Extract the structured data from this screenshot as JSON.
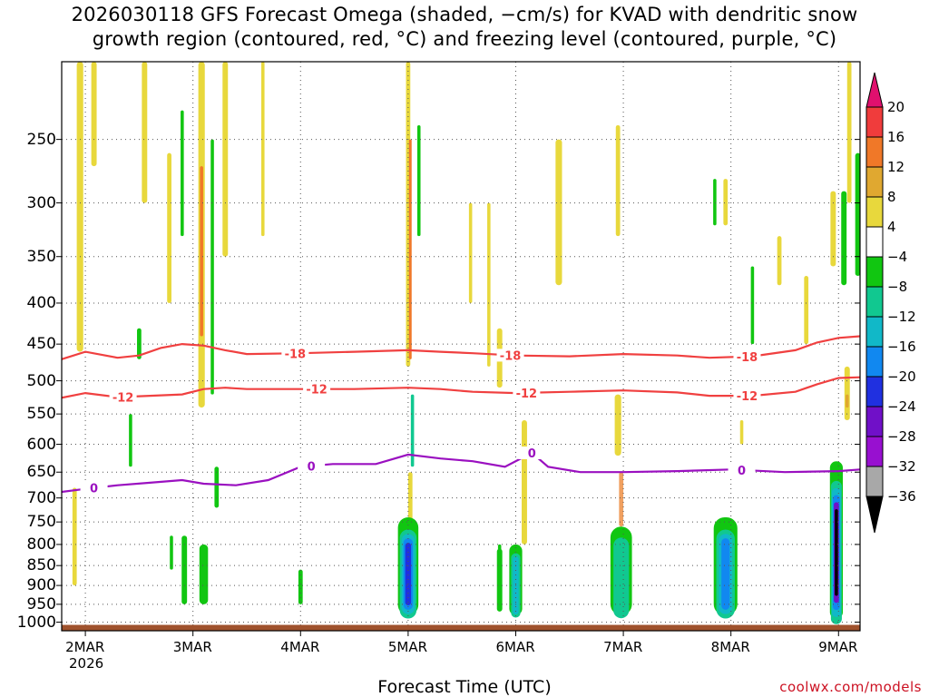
{
  "title_line1": "2026030118 GFS Forecast Omega (shaded, −cm/s) for KVAD with dendritic snow",
  "title_line2": "growth region (contoured, red, °C) and freezing level (contoured, purple, °C)",
  "credit": "coolwx.com/models",
  "chart_data": {
    "type": "heatmap",
    "title": "2026030118 GFS Forecast Omega (shaded, −cm/s) for KVAD with dendritic snow growth region (contoured, red, °C) and freezing level (contoured, purple, °C)",
    "xlabel": "Forecast Time (UTC)",
    "ylabel": "",
    "x_unit": "days since 2MAR2026 00Z",
    "xlim": [
      -0.22,
      7.2
    ],
    "y_scale": "log-pressure",
    "ylim": [
      1025,
      200
    ],
    "x_ticks": [
      {
        "label": "2MAR",
        "x": 0
      },
      {
        "label": "3MAR",
        "x": 1
      },
      {
        "label": "4MAR",
        "x": 2
      },
      {
        "label": "5MAR",
        "x": 3
      },
      {
        "label": "6MAR",
        "x": 4
      },
      {
        "label": "7MAR",
        "x": 5
      },
      {
        "label": "8MAR",
        "x": 6
      },
      {
        "label": "9MAR",
        "x": 7
      }
    ],
    "x_year_label": "2026",
    "y_ticks": [
      250,
      300,
      350,
      400,
      450,
      500,
      550,
      600,
      650,
      700,
      750,
      800,
      850,
      900,
      950,
      1000
    ],
    "colorbar": {
      "labels": [
        "20",
        "16",
        "12",
        "8",
        "4",
        "−4",
        "−8",
        "−12",
        "−16",
        "−20",
        "−24",
        "−28",
        "−32",
        "−36"
      ],
      "colors": [
        "#e0106e",
        "#f03c3c",
        "#f07828",
        "#e0a830",
        "#e8d83c",
        "#ffffff",
        "#11c611",
        "#11c890",
        "#11b8c8",
        "#1188f0",
        "#2030e0",
        "#7010c8",
        "#9810d0",
        "#a8a8a8",
        "#000000"
      ]
    },
    "contours": [
      {
        "name": "dendritic top",
        "label": "-18",
        "color": "#f04040",
        "points": [
          [
            -0.22,
            470
          ],
          [
            0,
            460
          ],
          [
            0.3,
            468
          ],
          [
            0.5,
            465
          ],
          [
            0.7,
            455
          ],
          [
            0.9,
            450
          ],
          [
            1.1,
            452
          ],
          [
            1.3,
            458
          ],
          [
            1.5,
            463
          ],
          [
            2,
            462
          ],
          [
            2.5,
            460
          ],
          [
            3,
            458
          ],
          [
            3.3,
            460
          ],
          [
            3.6,
            462
          ],
          [
            4,
            465
          ],
          [
            4.5,
            466
          ],
          [
            5,
            463
          ],
          [
            5.5,
            465
          ],
          [
            5.8,
            468
          ],
          [
            6.2,
            466
          ],
          [
            6.6,
            458
          ],
          [
            6.8,
            448
          ],
          [
            7,
            442
          ],
          [
            7.2,
            440
          ]
        ],
        "label_x": [
          1.95,
          3.95,
          6.15
        ]
      },
      {
        "name": "dendritic bottom",
        "label": "-12",
        "color": "#f04040",
        "points": [
          [
            -0.22,
            525
          ],
          [
            0,
            518
          ],
          [
            0.3,
            524
          ],
          [
            0.6,
            522
          ],
          [
            0.9,
            520
          ],
          [
            1.1,
            512
          ],
          [
            1.3,
            510
          ],
          [
            1.5,
            512
          ],
          [
            2,
            512
          ],
          [
            2.5,
            512
          ],
          [
            3,
            510
          ],
          [
            3.3,
            512
          ],
          [
            3.6,
            516
          ],
          [
            4,
            518
          ],
          [
            4.5,
            516
          ],
          [
            5,
            514
          ],
          [
            5.5,
            517
          ],
          [
            5.8,
            522
          ],
          [
            6.2,
            522
          ],
          [
            6.6,
            516
          ],
          [
            6.8,
            505
          ],
          [
            7,
            496
          ],
          [
            7.2,
            495
          ]
        ],
        "label_x": [
          0.35,
          2.15,
          4.1,
          6.15
        ]
      },
      {
        "name": "freezing level",
        "label": "0",
        "color": "#9a10c0",
        "points": [
          [
            -0.22,
            688
          ],
          [
            0,
            682
          ],
          [
            0.3,
            675
          ],
          [
            0.6,
            670
          ],
          [
            0.9,
            665
          ],
          [
            1.1,
            672
          ],
          [
            1.4,
            675
          ],
          [
            1.7,
            665
          ],
          [
            2,
            640
          ],
          [
            2.3,
            635
          ],
          [
            2.7,
            635
          ],
          [
            3,
            618
          ],
          [
            3.3,
            625
          ],
          [
            3.6,
            630
          ],
          [
            3.9,
            640
          ],
          [
            4.15,
            615
          ],
          [
            4.3,
            640
          ],
          [
            4.6,
            650
          ],
          [
            5,
            650
          ],
          [
            5.5,
            648
          ],
          [
            6,
            645
          ],
          [
            6.5,
            650
          ],
          [
            7,
            648
          ],
          [
            7.2,
            645
          ]
        ],
        "label_x": [
          0.08,
          2.1,
          4.15,
          6.1
        ]
      }
    ],
    "features": [
      {
        "x": -0.05,
        "p1": 200,
        "p2": 460,
        "w": 0.06,
        "color": "#e8d83c"
      },
      {
        "x": 0.08,
        "p1": 200,
        "p2": 270,
        "w": 0.05,
        "color": "#e8d83c"
      },
      {
        "x": 0.55,
        "p1": 200,
        "p2": 300,
        "w": 0.05,
        "color": "#e8d83c"
      },
      {
        "x": 0.5,
        "p1": 430,
        "p2": 470,
        "w": 0.04,
        "color": "#11c611"
      },
      {
        "x": 0.78,
        "p1": 260,
        "p2": 400,
        "w": 0.04,
        "color": "#e8d83c"
      },
      {
        "x": 0.9,
        "p1": 230,
        "p2": 330,
        "w": 0.03,
        "color": "#11c611"
      },
      {
        "x": 1.08,
        "p1": 200,
        "p2": 540,
        "w": 0.06,
        "color": "#e8d83c"
      },
      {
        "x": 1.08,
        "p1": 270,
        "p2": 440,
        "w": 0.03,
        "color": "#f07828"
      },
      {
        "x": 1.18,
        "p1": 250,
        "p2": 520,
        "w": 0.03,
        "color": "#11c611"
      },
      {
        "x": 1.3,
        "p1": 200,
        "p2": 350,
        "w": 0.05,
        "color": "#e8d83c"
      },
      {
        "x": 1.22,
        "p1": 640,
        "p2": 720,
        "w": 0.04,
        "color": "#11c611"
      },
      {
        "x": -0.1,
        "p1": 680,
        "p2": 900,
        "w": 0.04,
        "color": "#e8d83c"
      },
      {
        "x": 0.42,
        "p1": 550,
        "p2": 640,
        "w": 0.03,
        "color": "#11c611"
      },
      {
        "x": 0.92,
        "p1": 780,
        "p2": 950,
        "w": 0.05,
        "color": "#11c611"
      },
      {
        "x": 0.8,
        "p1": 780,
        "p2": 860,
        "w": 0.03,
        "color": "#11c611"
      },
      {
        "x": 1.65,
        "p1": 200,
        "p2": 330,
        "w": 0.03,
        "color": "#e8d83c"
      },
      {
        "x": 2.0,
        "p1": 860,
        "p2": 950,
        "w": 0.04,
        "color": "#11c611"
      },
      {
        "x": 3.0,
        "p1": 200,
        "p2": 480,
        "w": 0.04,
        "color": "#e8d83c"
      },
      {
        "x": 3.02,
        "p1": 250,
        "p2": 470,
        "w": 0.025,
        "color": "#f07828"
      },
      {
        "x": 3.1,
        "p1": 240,
        "p2": 330,
        "w": 0.03,
        "color": "#11c611"
      },
      {
        "x": 3.04,
        "p1": 520,
        "p2": 640,
        "w": 0.03,
        "color": "#11c890"
      },
      {
        "x": 3.02,
        "p1": 650,
        "p2": 800,
        "w": 0.04,
        "color": "#e8d83c"
      },
      {
        "x": 3.58,
        "p1": 300,
        "p2": 400,
        "w": 0.03,
        "color": "#e8d83c"
      },
      {
        "x": 3.85,
        "p1": 430,
        "p2": 510,
        "w": 0.05,
        "color": "#e8d83c"
      },
      {
        "x": 4.08,
        "p1": 560,
        "p2": 800,
        "w": 0.05,
        "color": "#e8d83c"
      },
      {
        "x": 4.4,
        "p1": 250,
        "p2": 380,
        "w": 0.06,
        "color": "#e8d83c"
      },
      {
        "x": 3.75,
        "p1": 300,
        "p2": 480,
        "w": 0.03,
        "color": "#e8d83c"
      },
      {
        "x": 3.85,
        "p1": 800,
        "p2": 950,
        "w": 0.03,
        "color": "#11c611"
      },
      {
        "x": 4.95,
        "p1": 240,
        "p2": 330,
        "w": 0.04,
        "color": "#e8d83c"
      },
      {
        "x": 4.95,
        "p1": 520,
        "p2": 620,
        "w": 0.06,
        "color": "#e8d83c"
      },
      {
        "x": 4.98,
        "p1": 650,
        "p2": 760,
        "w": 0.04,
        "color": "#f0a060"
      },
      {
        "x": 5.95,
        "p1": 280,
        "p2": 320,
        "w": 0.04,
        "color": "#e8d83c"
      },
      {
        "x": 5.85,
        "p1": 280,
        "p2": 320,
        "w": 0.03,
        "color": "#11c611"
      },
      {
        "x": 6.45,
        "p1": 330,
        "p2": 380,
        "w": 0.04,
        "color": "#e8d83c"
      },
      {
        "x": 6.2,
        "p1": 360,
        "p2": 450,
        "w": 0.03,
        "color": "#11c611"
      },
      {
        "x": 6.7,
        "p1": 370,
        "p2": 450,
        "w": 0.04,
        "color": "#e8d83c"
      },
      {
        "x": 7.1,
        "p1": 200,
        "p2": 300,
        "w": 0.04,
        "color": "#e8d83c"
      },
      {
        "x": 7.05,
        "p1": 290,
        "p2": 380,
        "w": 0.05,
        "color": "#11c611"
      },
      {
        "x": 7.18,
        "p1": 260,
        "p2": 370,
        "w": 0.05,
        "color": "#11c611"
      },
      {
        "x": 6.95,
        "p1": 290,
        "p2": 360,
        "w": 0.05,
        "color": "#e8d83c"
      },
      {
        "x": 7.08,
        "p1": 480,
        "p2": 560,
        "w": 0.05,
        "color": "#e8d83c"
      },
      {
        "x": 7.08,
        "p1": 520,
        "p2": 540,
        "w": 0.03,
        "color": "#e0a830"
      },
      {
        "x": 6.1,
        "p1": 560,
        "p2": 600,
        "w": 0.03,
        "color": "#e8d83c"
      }
    ],
    "cores": [
      {
        "x": 1.1,
        "p1": 800,
        "p2": 950,
        "w": 0.08,
        "bands": [
          "#11c611"
        ]
      },
      {
        "x": 3.0,
        "p1": 740,
        "p2": 980,
        "w": 0.19,
        "bands": [
          "#11c611",
          "#11c890",
          "#11b8c8",
          "#1188f0",
          "#2030e0"
        ]
      },
      {
        "x": 4.0,
        "p1": 800,
        "p2": 980,
        "w": 0.12,
        "bands": [
          "#11c611",
          "#11c890",
          "#11b8c8"
        ]
      },
      {
        "x": 3.85,
        "p1": 810,
        "p2": 970,
        "w": 0.05,
        "bands": [
          "#11c611"
        ]
      },
      {
        "x": 4.98,
        "p1": 760,
        "p2": 980,
        "w": 0.2,
        "bands": [
          "#11c611",
          "#11c890",
          "#11c890"
        ]
      },
      {
        "x": 5.95,
        "p1": 740,
        "p2": 980,
        "w": 0.22,
        "bands": [
          "#11c611",
          "#11c890",
          "#11b8c8",
          "#1188f0"
        ]
      },
      {
        "x": 6.98,
        "p1": 630,
        "p2": 990,
        "w": 0.12,
        "bands": [
          "#11c611",
          "#11c890",
          "#11b8c8",
          "#1188f0",
          "#7010c8",
          "#000000"
        ]
      }
    ]
  }
}
